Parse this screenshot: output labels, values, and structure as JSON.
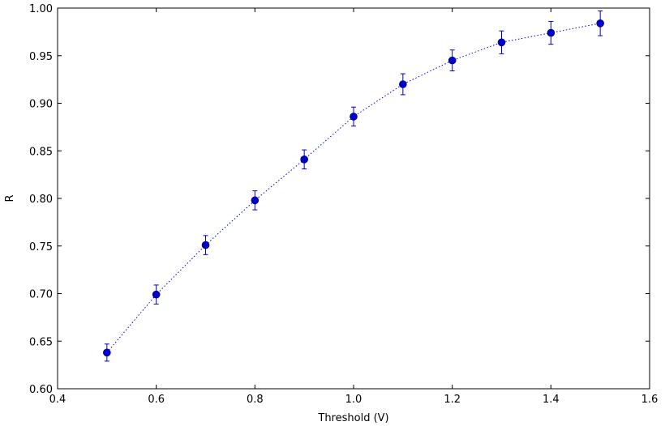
{
  "chart_data": {
    "type": "scatter",
    "title": "",
    "xlabel": "Threshold (V)",
    "ylabel": "R",
    "xlim": [
      0.4,
      1.6
    ],
    "ylim": [
      0.6,
      1.0
    ],
    "x_ticks": [
      0.4,
      0.6,
      0.8,
      1.0,
      1.2,
      1.4,
      1.6
    ],
    "x_tick_labels": [
      "0.4",
      "0.6",
      "0.8",
      "1.0",
      "1.2",
      "1.4",
      "1.6"
    ],
    "y_ticks": [
      0.6,
      0.65,
      0.7,
      0.75,
      0.8,
      0.85,
      0.9,
      0.95,
      1.0
    ],
    "y_tick_labels": [
      "0.60",
      "0.65",
      "0.70",
      "0.75",
      "0.80",
      "0.85",
      "0.90",
      "0.95",
      "1.00"
    ],
    "grid": false,
    "legend": "none",
    "series": [
      {
        "x": [
          0.5,
          0.6,
          0.7,
          0.8,
          0.9,
          1.0,
          1.1,
          1.2,
          1.3,
          1.4,
          1.5
        ],
        "y": [
          0.638,
          0.699,
          0.751,
          0.798,
          0.841,
          0.886,
          0.92,
          0.945,
          0.964,
          0.974,
          0.984
        ],
        "yerr": [
          0.009,
          0.01,
          0.01,
          0.01,
          0.01,
          0.01,
          0.011,
          0.011,
          0.012,
          0.012,
          0.013
        ],
        "color": "#0000cc",
        "marker": "circle",
        "line_style": "dotted"
      }
    ]
  }
}
